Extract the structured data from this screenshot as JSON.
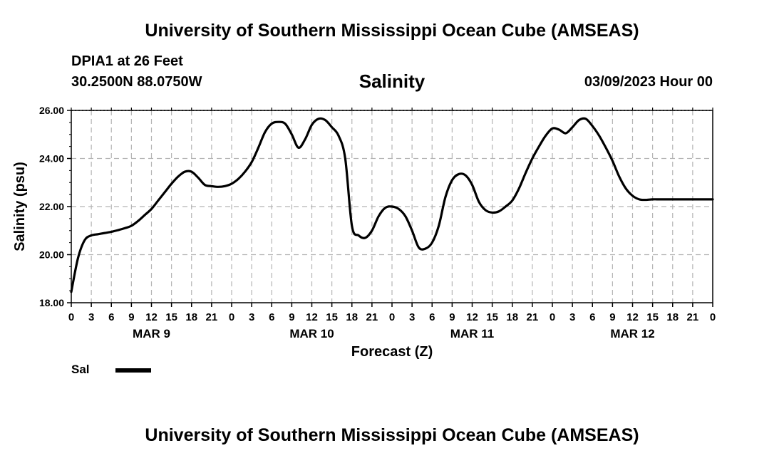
{
  "header": {
    "title": "University of Southern Mississippi Ocean Cube (AMSEAS)",
    "station": "DPIA1 at 26 Feet",
    "coords": "30.2500N  88.0750W",
    "chart_title": "Salinity",
    "date": "03/09/2023 Hour 00"
  },
  "footer": {
    "title": "University of Southern Mississippi Ocean Cube (AMSEAS)"
  },
  "legend": {
    "label": "Sal"
  },
  "chart_data": {
    "type": "line",
    "title": "Salinity",
    "xlabel": "Forecast (Z)",
    "ylabel": "Salinity (psu)",
    "ylim": [
      18,
      26
    ],
    "xlim": [
      0,
      96
    ],
    "x_unit": "hours from 03/09/2023 00Z",
    "y_ticks": [
      "18.00",
      "20.00",
      "22.00",
      "24.00",
      "26.00"
    ],
    "x_ticks": [
      "0",
      "3",
      "6",
      "9",
      "12",
      "15",
      "18",
      "21",
      "0",
      "3",
      "6",
      "9",
      "12",
      "15",
      "18",
      "21",
      "0",
      "3",
      "6",
      "9",
      "12",
      "15",
      "18",
      "21",
      "0",
      "3",
      "6",
      "9",
      "12",
      "15",
      "18",
      "21",
      "0"
    ],
    "day_labels": [
      {
        "label": "MAR 9",
        "hour": 12
      },
      {
        "label": "MAR 10",
        "hour": 36
      },
      {
        "label": "MAR 11",
        "hour": 60
      },
      {
        "label": "MAR 12",
        "hour": 84
      }
    ],
    "grid": true,
    "series": [
      {
        "name": "Sal",
        "color": "#000000",
        "x": [
          0,
          1,
          2,
          3,
          4,
          5,
          6,
          7,
          8,
          9,
          10,
          11,
          12,
          13,
          14,
          15,
          16,
          17,
          18,
          19,
          20,
          21,
          22,
          23,
          24,
          25,
          26,
          27,
          28,
          29,
          30,
          31,
          32,
          33,
          34,
          35,
          36,
          37,
          38,
          39,
          40,
          41,
          42,
          43,
          44,
          45,
          46,
          47,
          48,
          49,
          50,
          51,
          52,
          53,
          54,
          55,
          56,
          57,
          58,
          59,
          60,
          61,
          62,
          63,
          64,
          65,
          66,
          67,
          68,
          69,
          70,
          71,
          72,
          73,
          74,
          75,
          76,
          77,
          78,
          79,
          80,
          81,
          82,
          83,
          84,
          85,
          86,
          87,
          88,
          89,
          90,
          91,
          92,
          93,
          94,
          95,
          96
        ],
        "values": [
          18.45,
          19.85,
          20.6,
          20.8,
          20.85,
          20.9,
          20.95,
          21.02,
          21.1,
          21.2,
          21.4,
          21.65,
          21.9,
          22.25,
          22.6,
          22.95,
          23.25,
          23.45,
          23.45,
          23.2,
          22.9,
          22.85,
          22.82,
          22.85,
          22.95,
          23.15,
          23.45,
          23.85,
          24.45,
          25.1,
          25.45,
          25.52,
          25.45,
          25.0,
          24.45,
          24.8,
          25.4,
          25.65,
          25.6,
          25.3,
          24.95,
          24.0,
          21.2,
          20.8,
          20.7,
          21.0,
          21.6,
          21.95,
          22.0,
          21.9,
          21.6,
          21.0,
          20.3,
          20.25,
          20.5,
          21.2,
          22.4,
          23.1,
          23.35,
          23.3,
          22.9,
          22.2,
          21.85,
          21.75,
          21.8,
          22.0,
          22.25,
          22.75,
          23.4,
          24.0,
          24.5,
          24.95,
          25.25,
          25.2,
          25.05,
          25.3,
          25.6,
          25.65,
          25.35,
          24.95,
          24.45,
          23.9,
          23.25,
          22.75,
          22.45,
          22.3,
          22.28,
          22.3,
          22.3,
          22.3,
          22.3,
          22.3,
          22.3,
          22.3,
          22.3,
          22.3,
          22.3
        ]
      }
    ]
  }
}
